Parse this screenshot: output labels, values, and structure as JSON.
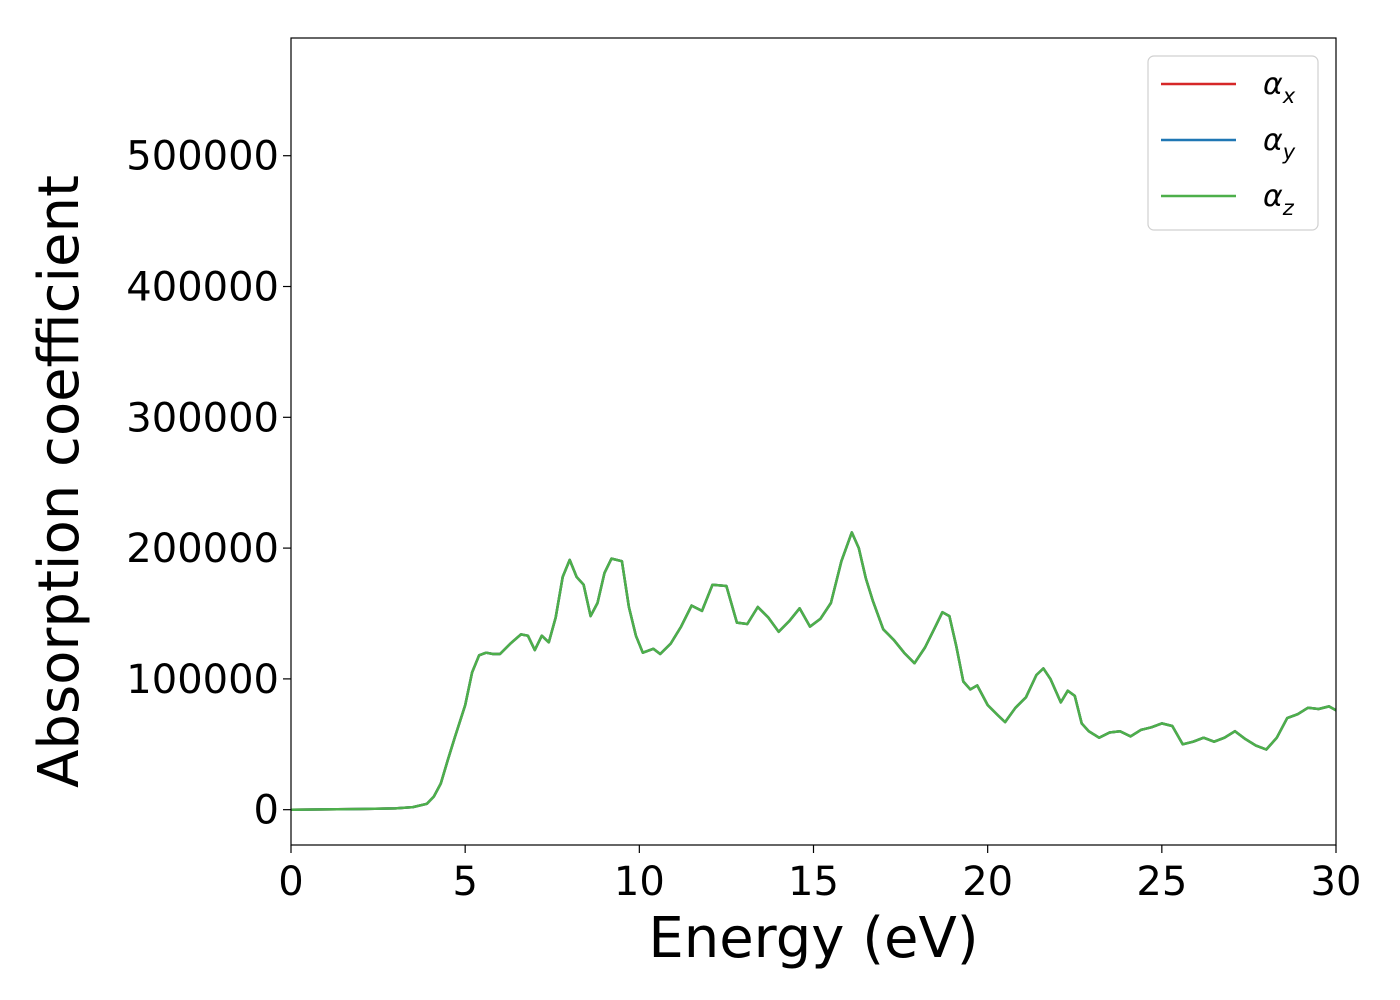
{
  "chart_data": {
    "type": "line",
    "xlabel": "Energy (eV)",
    "ylabel": "Absorption coefficient",
    "xlim": [
      0,
      30
    ],
    "ylim": [
      -27000,
      590000
    ],
    "xticks": [
      0,
      5,
      10,
      15,
      20,
      25,
      30
    ],
    "xtick_labels": [
      "0",
      "5",
      "10",
      "15",
      "20",
      "25",
      "30"
    ],
    "yticks": [
      0,
      100000,
      200000,
      300000,
      400000,
      500000
    ],
    "ytick_labels": [
      "0",
      "100000",
      "200000",
      "300000",
      "400000",
      "500000"
    ],
    "grid": false,
    "legend_position": "top-right",
    "x": [
      0,
      1,
      2,
      3,
      3.5,
      3.9,
      4.1,
      4.3,
      4.5,
      4.7,
      5.0,
      5.2,
      5.4,
      5.6,
      5.8,
      6.0,
      6.3,
      6.6,
      6.8,
      7.0,
      7.2,
      7.4,
      7.6,
      7.8,
      8.0,
      8.2,
      8.4,
      8.6,
      8.8,
      9.0,
      9.2,
      9.5,
      9.7,
      9.9,
      10.1,
      10.4,
      10.6,
      10.9,
      11.2,
      11.5,
      11.8,
      12.1,
      12.5,
      12.8,
      13.1,
      13.4,
      13.7,
      14.0,
      14.3,
      14.6,
      14.9,
      15.2,
      15.5,
      15.8,
      16.1,
      16.3,
      16.5,
      16.7,
      17.0,
      17.3,
      17.6,
      17.9,
      18.2,
      18.5,
      18.7,
      18.9,
      19.1,
      19.3,
      19.5,
      19.7,
      20.0,
      20.3,
      20.5,
      20.8,
      21.1,
      21.4,
      21.6,
      21.8,
      22.1,
      22.3,
      22.5,
      22.7,
      22.9,
      23.2,
      23.5,
      23.8,
      24.1,
      24.4,
      24.7,
      25.0,
      25.3,
      25.6,
      25.9,
      26.2,
      26.5,
      26.8,
      27.1,
      27.4,
      27.7,
      28.0,
      28.3,
      28.6,
      28.9,
      29.2,
      29.5,
      29.8,
      30
    ],
    "series": [
      {
        "name": "α_x",
        "color": "#d62728"
      },
      {
        "name": "α_y",
        "color": "#1f77b4"
      },
      {
        "name": "α_z",
        "color": "#4daf4a"
      }
    ],
    "y": [
      0,
      200,
      500,
      1000,
      2000,
      4500,
      10000,
      20000,
      38000,
      55000,
      80000,
      105000,
      118000,
      120000,
      119000,
      119000,
      127000,
      134000,
      133000,
      122000,
      133000,
      128000,
      147000,
      178000,
      191000,
      178000,
      172000,
      148000,
      158000,
      181000,
      192000,
      190000,
      155000,
      133000,
      120000,
      123000,
      119000,
      127000,
      140000,
      156000,
      152000,
      172000,
      171000,
      143000,
      142000,
      155000,
      147000,
      136000,
      144000,
      154000,
      140000,
      146000,
      158000,
      190000,
      212000,
      200000,
      177000,
      160000,
      138000,
      130000,
      120000,
      112000,
      124000,
      140000,
      151000,
      148000,
      125000,
      98000,
      92000,
      95000,
      80000,
      72000,
      67000,
      78000,
      86000,
      103000,
      108000,
      100000,
      82000,
      91000,
      87000,
      66000,
      60000,
      55000,
      59000,
      60000,
      56000,
      61000,
      63000,
      66000,
      64000,
      50000,
      52000,
      55000,
      52000,
      55000,
      60000,
      54000,
      49000,
      46000,
      55000,
      70000,
      73000,
      78000,
      77000,
      79000,
      76000
    ]
  },
  "legend": {
    "items": [
      {
        "symbol": "α",
        "sub": "x",
        "color": "#d62728"
      },
      {
        "symbol": "α",
        "sub": "y",
        "color": "#1f77b4"
      },
      {
        "symbol": "α",
        "sub": "z",
        "color": "#4daf4a"
      }
    ]
  }
}
